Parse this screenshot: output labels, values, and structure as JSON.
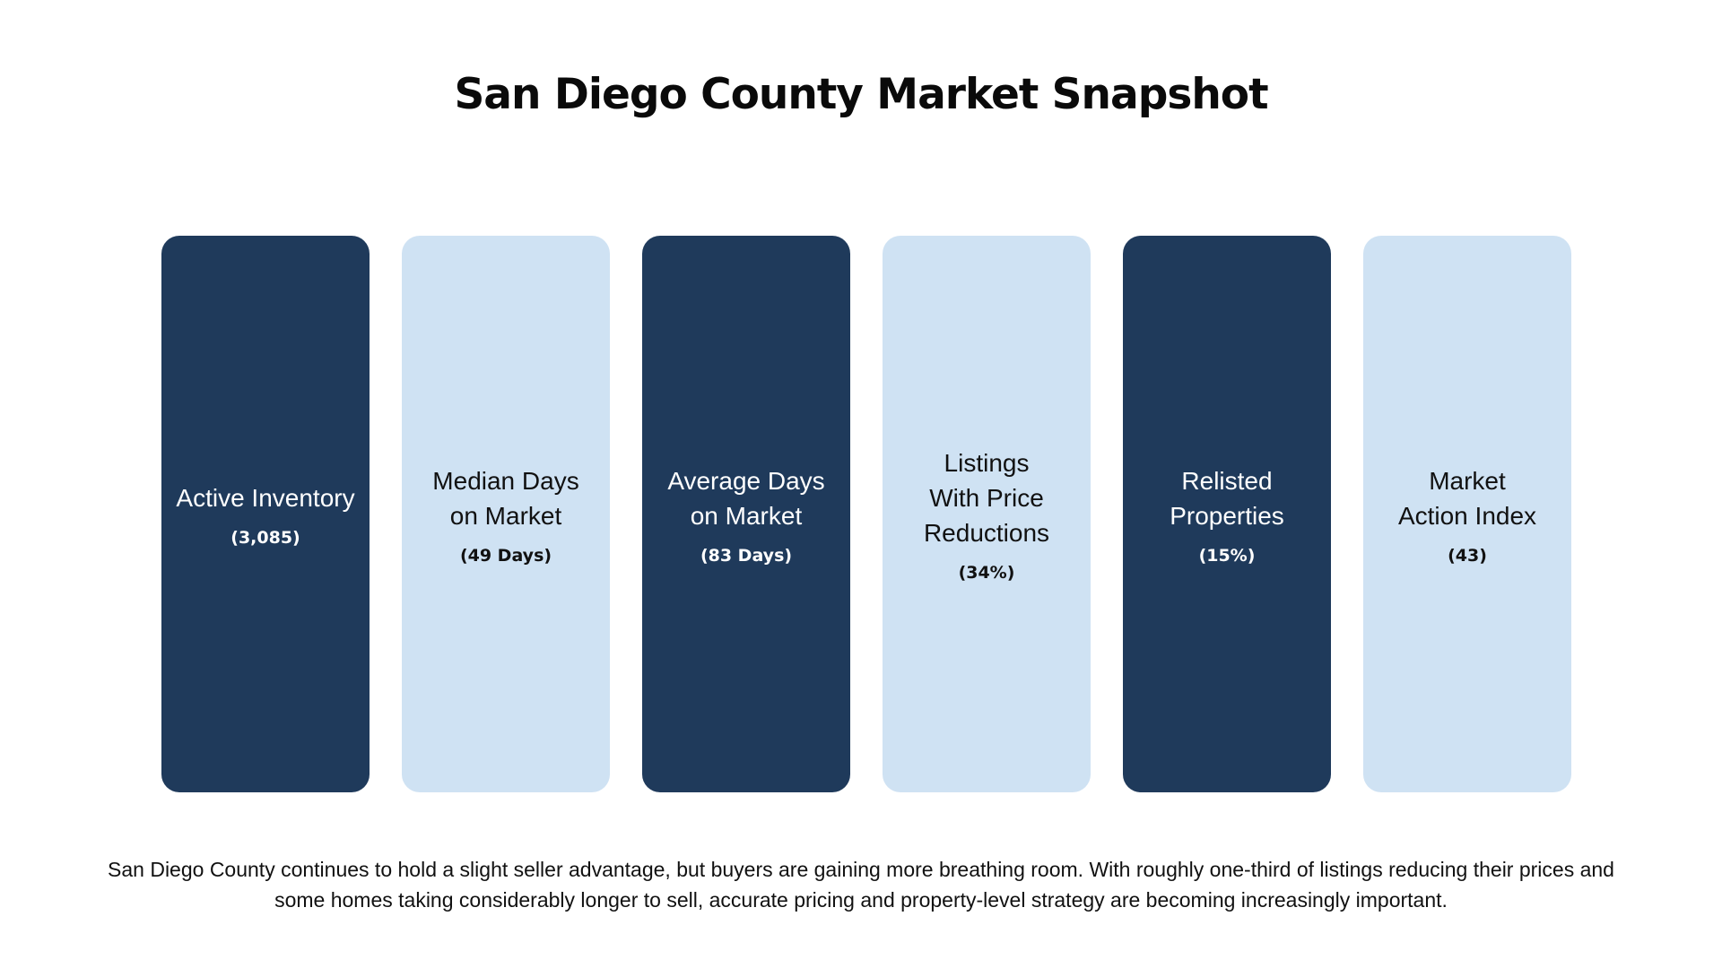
{
  "title": "San Diego County Market Snapshot",
  "cards": [
    {
      "label": "Active Inventory",
      "value": "(3,085)",
      "style": "dark"
    },
    {
      "label": "Median Days\non Market",
      "value": "(49 Days)",
      "style": "light"
    },
    {
      "label": "Average Days\non Market",
      "value": "(83 Days)",
      "style": "dark"
    },
    {
      "label": "Listings\nWith Price\nReductions",
      "value": "(34%)",
      "style": "light"
    },
    {
      "label": "Relisted\nProperties",
      "value": "(15%)",
      "style": "dark"
    },
    {
      "label": "Market\nAction Index",
      "value": "(43)",
      "style": "light"
    }
  ],
  "summary": "San Diego County continues to hold a slight seller advantage, but buyers are gaining more breathing room. With roughly one-third of listings reducing their prices and some homes taking considerably longer to sell, accurate pricing and property-level strategy are becoming increasingly important.",
  "colors": {
    "dark_card": "#1f3a5b",
    "light_card": "#cfe2f3"
  }
}
